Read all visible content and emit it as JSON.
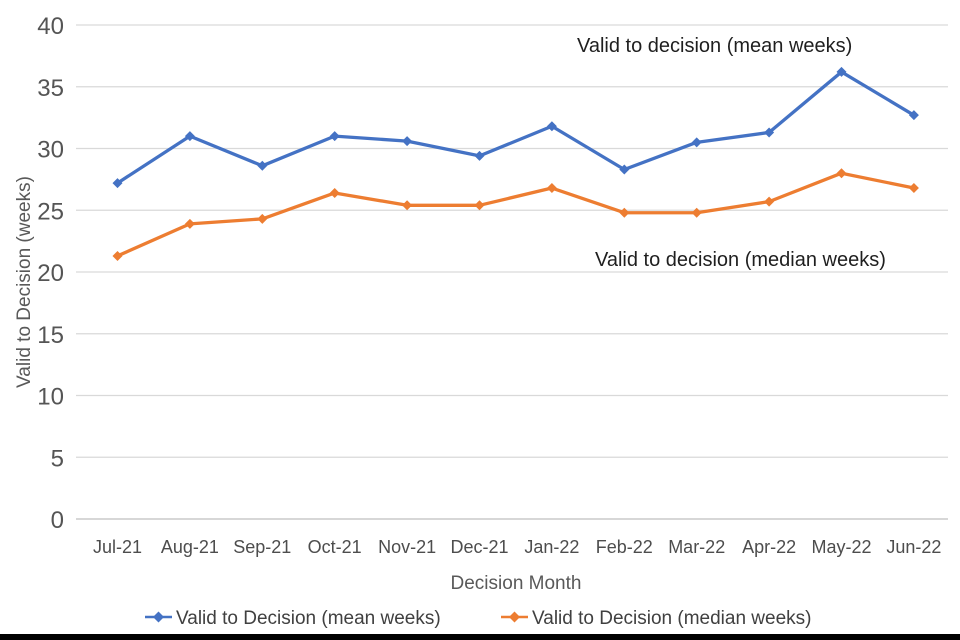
{
  "chart_data": {
    "type": "line",
    "title": "",
    "x": [
      "Jul-21",
      "Aug-21",
      "Sep-21",
      "Oct-21",
      "Nov-21",
      "Dec-21",
      "Jan-22",
      "Feb-22",
      "Mar-22",
      "Apr-22",
      "May-22",
      "Jun-22"
    ],
    "series": [
      {
        "name": "Valid to Decision  (mean weeks)",
        "color": "#4472C4",
        "values": [
          27.2,
          31.0,
          28.6,
          31.0,
          30.6,
          29.4,
          31.8,
          28.3,
          30.5,
          31.3,
          36.2,
          32.7
        ]
      },
      {
        "name": "Valid to Decision  (median weeks)",
        "color": "#ED7D31",
        "values": [
          21.3,
          23.9,
          24.3,
          26.4,
          25.4,
          25.4,
          26.8,
          24.8,
          24.8,
          25.7,
          28.0,
          26.8
        ]
      }
    ],
    "annotations": [
      {
        "text": "Valid to decision (mean weeks)"
      },
      {
        "text": "Valid to decision (median weeks)"
      }
    ],
    "xlabel": "Decision Month",
    "ylabel": "Valid to Decision (weeks)",
    "ylim": [
      0,
      40
    ],
    "ytick_step": 5,
    "yticks": [
      0,
      5,
      10,
      15,
      20,
      25,
      30,
      35,
      40
    ],
    "grid": "horizontal",
    "legend_position": "bottom"
  },
  "colors": {
    "mean_line": "#4472C4",
    "median_line": "#ED7D31",
    "gridline": "#D9D9D9",
    "axis_line": "#BFBFBF",
    "background": "#FFFFFF",
    "bottom_border": "#000000"
  }
}
